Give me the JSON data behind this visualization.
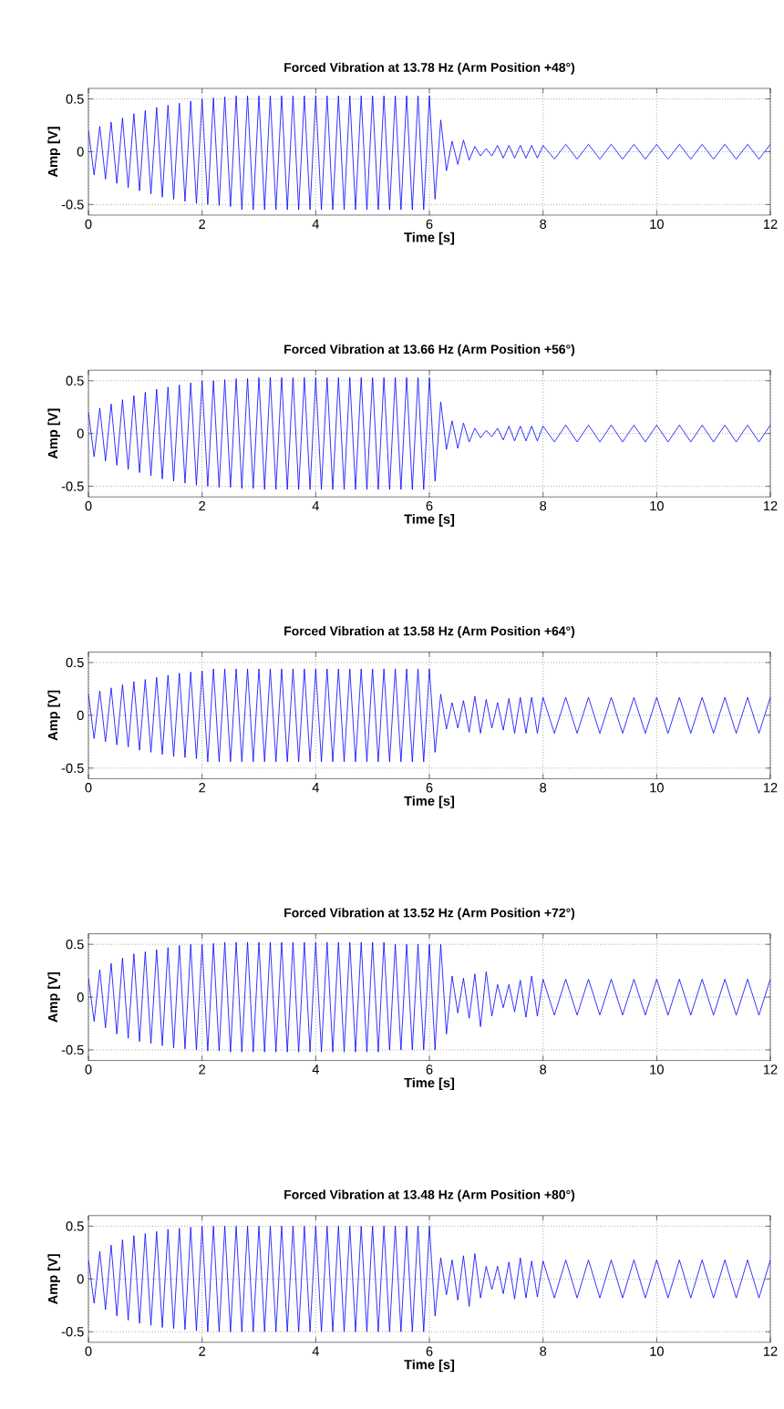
{
  "chart_data": [
    {
      "type": "line",
      "title": "Forced Vibration at 13.78 Hz (Arm Position +48°)",
      "xlabel": "Time [s]",
      "ylabel": "Amp [V]",
      "xlim": [
        0,
        12
      ],
      "ylim": [
        -0.6,
        0.6
      ],
      "xticks": [
        0,
        2,
        4,
        6,
        8,
        10,
        12
      ],
      "yticks": [
        -0.5,
        0,
        0.5
      ],
      "grid": true,
      "x": [
        0,
        0.1,
        0.2,
        0.3,
        0.4,
        0.5,
        0.6,
        0.7,
        0.8,
        0.9,
        1,
        1.1,
        1.2,
        1.3,
        1.4,
        1.5,
        1.6,
        1.7,
        1.8,
        1.9,
        2,
        2.1,
        2.2,
        2.3,
        2.4,
        2.5,
        2.6,
        2.7,
        2.8,
        2.9,
        3,
        3.1,
        3.2,
        3.3,
        3.4,
        3.5,
        3.6,
        3.7,
        3.8,
        3.9,
        4,
        4.1,
        4.2,
        4.3,
        4.4,
        4.5,
        4.6,
        4.7,
        4.8,
        4.9,
        5,
        5.1,
        5.2,
        5.3,
        5.4,
        5.5,
        5.6,
        5.7,
        5.8,
        5.9,
        6,
        6.1,
        6.2,
        6.3,
        6.4,
        6.5,
        6.6,
        6.7,
        6.8,
        6.9,
        7,
        7.1,
        7.2,
        7.3,
        7.4,
        7.5,
        7.6,
        7.7,
        7.8,
        7.9,
        8,
        8.2,
        8.4,
        8.6,
        8.8,
        9,
        9.2,
        9.4,
        9.6,
        9.8,
        10,
        10.2,
        10.4,
        10.6,
        10.8,
        11,
        11.2,
        11.4,
        11.6,
        11.8,
        12
      ],
      "series": [
        {
          "color": "#0000ff",
          "values": [
            0.2,
            -0.22,
            0.24,
            -0.26,
            0.28,
            -0.3,
            0.32,
            -0.34,
            0.36,
            -0.37,
            0.39,
            -0.4,
            0.42,
            -0.43,
            0.44,
            -0.45,
            0.46,
            -0.47,
            0.48,
            -0.49,
            0.5,
            -0.5,
            0.51,
            -0.51,
            0.52,
            -0.52,
            0.53,
            -0.55,
            0.53,
            -0.55,
            0.53,
            -0.55,
            0.53,
            -0.55,
            0.53,
            -0.55,
            0.53,
            -0.55,
            0.53,
            -0.55,
            0.53,
            -0.55,
            0.53,
            -0.55,
            0.53,
            -0.55,
            0.53,
            -0.55,
            0.53,
            -0.55,
            0.53,
            -0.55,
            0.53,
            -0.55,
            0.53,
            -0.55,
            0.53,
            -0.55,
            0.53,
            -0.55,
            0.53,
            -0.45,
            0.3,
            -0.18,
            0.1,
            -0.12,
            0.11,
            -0.08,
            0.05,
            -0.04,
            0.03,
            -0.04,
            0.06,
            -0.06,
            0.06,
            -0.06,
            0.06,
            -0.06,
            0.06,
            -0.06,
            0.06,
            -0.07,
            0.07,
            -0.07,
            0.07,
            -0.07,
            0.07,
            -0.07,
            0.07,
            -0.07,
            0.07,
            -0.07,
            0.07,
            -0.07,
            0.07,
            -0.07,
            0.07,
            -0.07,
            0.07,
            -0.07,
            0.07
          ]
        }
      ]
    },
    {
      "type": "line",
      "title": "Forced Vibration at 13.66 Hz (Arm Position +56°)",
      "xlabel": "Time [s]",
      "ylabel": "Amp [V]",
      "xlim": [
        0,
        12
      ],
      "ylim": [
        -0.6,
        0.6
      ],
      "xticks": [
        0,
        2,
        4,
        6,
        8,
        10,
        12
      ],
      "yticks": [
        -0.5,
        0,
        0.5
      ],
      "grid": true,
      "x": [
        0,
        0.1,
        0.2,
        0.3,
        0.4,
        0.5,
        0.6,
        0.7,
        0.8,
        0.9,
        1,
        1.1,
        1.2,
        1.3,
        1.4,
        1.5,
        1.6,
        1.7,
        1.8,
        1.9,
        2,
        2.1,
        2.2,
        2.3,
        2.4,
        2.5,
        2.6,
        2.7,
        2.8,
        2.9,
        3,
        3.1,
        3.2,
        3.3,
        3.4,
        3.5,
        3.6,
        3.7,
        3.8,
        3.9,
        4,
        4.1,
        4.2,
        4.3,
        4.4,
        4.5,
        4.6,
        4.7,
        4.8,
        4.9,
        5,
        5.1,
        5.2,
        5.3,
        5.4,
        5.5,
        5.6,
        5.7,
        5.8,
        5.9,
        6,
        6.1,
        6.2,
        6.3,
        6.4,
        6.5,
        6.6,
        6.7,
        6.8,
        6.9,
        7,
        7.1,
        7.2,
        7.3,
        7.4,
        7.5,
        7.6,
        7.7,
        7.8,
        7.9,
        8,
        8.2,
        8.4,
        8.6,
        8.8,
        9,
        9.2,
        9.4,
        9.6,
        9.8,
        10,
        10.2,
        10.4,
        10.6,
        10.8,
        11,
        11.2,
        11.4,
        11.6,
        11.8,
        12
      ],
      "series": [
        {
          "color": "#0000ff",
          "values": [
            0.2,
            -0.22,
            0.24,
            -0.26,
            0.28,
            -0.3,
            0.32,
            -0.34,
            0.36,
            -0.37,
            0.39,
            -0.4,
            0.42,
            -0.43,
            0.44,
            -0.45,
            0.46,
            -0.47,
            0.48,
            -0.49,
            0.5,
            -0.5,
            0.5,
            -0.51,
            0.51,
            -0.51,
            0.52,
            -0.52,
            0.52,
            -0.52,
            0.53,
            -0.53,
            0.53,
            -0.53,
            0.53,
            -0.53,
            0.53,
            -0.53,
            0.53,
            -0.53,
            0.53,
            -0.53,
            0.53,
            -0.53,
            0.53,
            -0.53,
            0.53,
            -0.53,
            0.53,
            -0.53,
            0.53,
            -0.53,
            0.53,
            -0.53,
            0.53,
            -0.53,
            0.53,
            -0.53,
            0.53,
            -0.53,
            0.53,
            -0.45,
            0.3,
            -0.15,
            0.12,
            -0.14,
            0.1,
            -0.08,
            0.05,
            -0.04,
            0.03,
            -0.03,
            0.05,
            -0.06,
            0.07,
            -0.07,
            0.07,
            -0.07,
            0.07,
            -0.07,
            0.07,
            -0.08,
            0.08,
            -0.08,
            0.08,
            -0.08,
            0.08,
            -0.08,
            0.08,
            -0.08,
            0.08,
            -0.08,
            0.08,
            -0.08,
            0.08,
            -0.08,
            0.08,
            -0.08,
            0.08,
            -0.08,
            0.08
          ]
        }
      ]
    },
    {
      "type": "line",
      "title": "Forced Vibration at 13.58 Hz (Arm Position +64°)",
      "xlabel": "Time [s]",
      "ylabel": "Amp [V]",
      "xlim": [
        0,
        12
      ],
      "ylim": [
        -0.6,
        0.6
      ],
      "xticks": [
        0,
        2,
        4,
        6,
        8,
        10,
        12
      ],
      "yticks": [
        -0.5,
        0,
        0.5
      ],
      "grid": true,
      "x": [
        0,
        0.1,
        0.2,
        0.3,
        0.4,
        0.5,
        0.6,
        0.7,
        0.8,
        0.9,
        1,
        1.1,
        1.2,
        1.3,
        1.4,
        1.5,
        1.6,
        1.7,
        1.8,
        1.9,
        2,
        2.1,
        2.2,
        2.3,
        2.4,
        2.5,
        2.6,
        2.7,
        2.8,
        2.9,
        3,
        3.1,
        3.2,
        3.3,
        3.4,
        3.5,
        3.6,
        3.7,
        3.8,
        3.9,
        4,
        4.1,
        4.2,
        4.3,
        4.4,
        4.5,
        4.6,
        4.7,
        4.8,
        4.9,
        5,
        5.1,
        5.2,
        5.3,
        5.4,
        5.5,
        5.6,
        5.7,
        5.8,
        5.9,
        6,
        6.1,
        6.2,
        6.3,
        6.4,
        6.5,
        6.6,
        6.7,
        6.8,
        6.9,
        7,
        7.1,
        7.2,
        7.3,
        7.4,
        7.5,
        7.6,
        7.7,
        7.8,
        7.9,
        8,
        8.2,
        8.4,
        8.6,
        8.8,
        9,
        9.2,
        9.4,
        9.6,
        9.8,
        10,
        10.2,
        10.4,
        10.6,
        10.8,
        11,
        11.2,
        11.4,
        11.6,
        11.8,
        12
      ],
      "series": [
        {
          "color": "#0000ff",
          "values": [
            0.2,
            -0.22,
            0.23,
            -0.25,
            0.26,
            -0.28,
            0.29,
            -0.3,
            0.32,
            -0.33,
            0.34,
            -0.35,
            0.36,
            -0.37,
            0.38,
            -0.39,
            0.4,
            -0.4,
            0.41,
            -0.41,
            0.42,
            -0.44,
            0.44,
            -0.44,
            0.44,
            -0.44,
            0.44,
            -0.44,
            0.44,
            -0.44,
            0.44,
            -0.44,
            0.44,
            -0.44,
            0.44,
            -0.44,
            0.44,
            -0.44,
            0.44,
            -0.44,
            0.44,
            -0.44,
            0.44,
            -0.44,
            0.44,
            -0.44,
            0.44,
            -0.44,
            0.44,
            -0.44,
            0.44,
            -0.44,
            0.44,
            -0.44,
            0.44,
            -0.44,
            0.44,
            -0.44,
            0.44,
            -0.44,
            0.44,
            -0.35,
            0.2,
            -0.13,
            0.12,
            -0.12,
            0.14,
            -0.16,
            0.18,
            -0.17,
            0.15,
            -0.12,
            0.12,
            -0.14,
            0.16,
            -0.17,
            0.17,
            -0.17,
            0.17,
            -0.17,
            0.17,
            -0.17,
            0.17,
            -0.17,
            0.17,
            -0.17,
            0.17,
            -0.17,
            0.17,
            -0.17,
            0.17,
            -0.17,
            0.17,
            -0.17,
            0.17,
            -0.17,
            0.17,
            -0.17,
            0.17,
            -0.17,
            0.17
          ]
        }
      ]
    },
    {
      "type": "line",
      "title": "Forced Vibration at 13.52 Hz (Arm Position +72°)",
      "xlabel": "Time [s]",
      "ylabel": "Amp [V]",
      "xlim": [
        0,
        12
      ],
      "ylim": [
        -0.6,
        0.6
      ],
      "xticks": [
        0,
        2,
        4,
        6,
        8,
        10,
        12
      ],
      "yticks": [
        -0.5,
        0,
        0.5
      ],
      "grid": true,
      "x": [
        0,
        0.1,
        0.2,
        0.3,
        0.4,
        0.5,
        0.6,
        0.7,
        0.8,
        0.9,
        1,
        1.1,
        1.2,
        1.3,
        1.4,
        1.5,
        1.6,
        1.7,
        1.8,
        1.9,
        2,
        2.1,
        2.2,
        2.3,
        2.4,
        2.5,
        2.6,
        2.7,
        2.8,
        2.9,
        3,
        3.1,
        3.2,
        3.3,
        3.4,
        3.5,
        3.6,
        3.7,
        3.8,
        3.9,
        4,
        4.1,
        4.2,
        4.3,
        4.4,
        4.5,
        4.6,
        4.7,
        4.8,
        4.9,
        5,
        5.1,
        5.2,
        5.3,
        5.4,
        5.5,
        5.6,
        5.7,
        5.8,
        5.9,
        6,
        6.1,
        6.2,
        6.3,
        6.4,
        6.5,
        6.6,
        6.7,
        6.8,
        6.9,
        7,
        7.1,
        7.2,
        7.3,
        7.4,
        7.5,
        7.6,
        7.7,
        7.8,
        7.9,
        8,
        8.2,
        8.4,
        8.6,
        8.8,
        9,
        9.2,
        9.4,
        9.6,
        9.8,
        10,
        10.2,
        10.4,
        10.6,
        10.8,
        11,
        11.2,
        11.4,
        11.6,
        11.8,
        12
      ],
      "series": [
        {
          "color": "#0000ff",
          "values": [
            0.18,
            -0.23,
            0.26,
            -0.29,
            0.32,
            -0.35,
            0.37,
            -0.39,
            0.41,
            -0.42,
            0.43,
            -0.44,
            0.45,
            -0.46,
            0.47,
            -0.48,
            0.49,
            -0.49,
            0.5,
            -0.5,
            0.5,
            -0.51,
            0.51,
            -0.51,
            0.52,
            -0.52,
            0.52,
            -0.52,
            0.52,
            -0.52,
            0.52,
            -0.52,
            0.52,
            -0.52,
            0.52,
            -0.52,
            0.52,
            -0.52,
            0.52,
            -0.52,
            0.52,
            -0.52,
            0.52,
            -0.52,
            0.52,
            -0.52,
            0.52,
            -0.52,
            0.52,
            -0.52,
            0.52,
            -0.52,
            0.52,
            -0.5,
            0.5,
            -0.5,
            0.5,
            -0.5,
            0.5,
            -0.5,
            0.5,
            -0.5,
            0.5,
            -0.35,
            0.2,
            -0.15,
            0.18,
            -0.2,
            0.22,
            -0.28,
            0.24,
            -0.18,
            0.12,
            -0.1,
            0.12,
            -0.14,
            0.16,
            -0.19,
            0.2,
            -0.18,
            0.17,
            -0.17,
            0.17,
            -0.17,
            0.17,
            -0.17,
            0.17,
            -0.17,
            0.17,
            -0.17,
            0.17,
            -0.17,
            0.17,
            -0.17,
            0.17,
            -0.17,
            0.17,
            -0.17,
            0.17,
            -0.17,
            0.17
          ]
        }
      ]
    },
    {
      "type": "line",
      "title": "Forced Vibration at 13.48 Hz (Arm Position +80°)",
      "xlabel": "Time [s]",
      "ylabel": "Amp [V]",
      "xlim": [
        0,
        12
      ],
      "ylim": [
        -0.6,
        0.6
      ],
      "xticks": [
        0,
        2,
        4,
        6,
        8,
        10,
        12
      ],
      "yticks": [
        -0.5,
        0,
        0.5
      ],
      "grid": true,
      "x": [
        0,
        0.1,
        0.2,
        0.3,
        0.4,
        0.5,
        0.6,
        0.7,
        0.8,
        0.9,
        1,
        1.1,
        1.2,
        1.3,
        1.4,
        1.5,
        1.6,
        1.7,
        1.8,
        1.9,
        2,
        2.1,
        2.2,
        2.3,
        2.4,
        2.5,
        2.6,
        2.7,
        2.8,
        2.9,
        3,
        3.1,
        3.2,
        3.3,
        3.4,
        3.5,
        3.6,
        3.7,
        3.8,
        3.9,
        4,
        4.1,
        4.2,
        4.3,
        4.4,
        4.5,
        4.6,
        4.7,
        4.8,
        4.9,
        5,
        5.1,
        5.2,
        5.3,
        5.4,
        5.5,
        5.6,
        5.7,
        5.8,
        5.9,
        6,
        6.1,
        6.2,
        6.3,
        6.4,
        6.5,
        6.6,
        6.7,
        6.8,
        6.9,
        7,
        7.1,
        7.2,
        7.3,
        7.4,
        7.5,
        7.6,
        7.7,
        7.8,
        7.9,
        8,
        8.2,
        8.4,
        8.6,
        8.8,
        9,
        9.2,
        9.4,
        9.6,
        9.8,
        10,
        10.2,
        10.4,
        10.6,
        10.8,
        11,
        11.2,
        11.4,
        11.6,
        11.8,
        12
      ],
      "series": [
        {
          "color": "#0000ff",
          "values": [
            0.18,
            -0.23,
            0.26,
            -0.29,
            0.32,
            -0.35,
            0.37,
            -0.39,
            0.41,
            -0.42,
            0.43,
            -0.44,
            0.45,
            -0.46,
            0.47,
            -0.47,
            0.48,
            -0.48,
            0.49,
            -0.49,
            0.5,
            -0.5,
            0.5,
            -0.5,
            0.5,
            -0.5,
            0.5,
            -0.5,
            0.5,
            -0.5,
            0.5,
            -0.5,
            0.5,
            -0.5,
            0.5,
            -0.5,
            0.5,
            -0.5,
            0.5,
            -0.5,
            0.5,
            -0.5,
            0.5,
            -0.5,
            0.5,
            -0.5,
            0.5,
            -0.5,
            0.5,
            -0.5,
            0.5,
            -0.5,
            0.5,
            -0.5,
            0.5,
            -0.5,
            0.5,
            -0.5,
            0.5,
            -0.5,
            0.5,
            -0.35,
            0.2,
            -0.15,
            0.18,
            -0.2,
            0.22,
            -0.26,
            0.24,
            -0.18,
            0.12,
            -0.1,
            0.12,
            -0.14,
            0.16,
            -0.19,
            0.2,
            -0.18,
            0.17,
            -0.17,
            0.17,
            -0.18,
            0.18,
            -0.18,
            0.18,
            -0.18,
            0.18,
            -0.18,
            0.18,
            -0.18,
            0.18,
            -0.18,
            0.18,
            -0.18,
            0.18,
            -0.18,
            0.18,
            -0.18,
            0.18,
            -0.18,
            0.18
          ]
        }
      ]
    }
  ]
}
